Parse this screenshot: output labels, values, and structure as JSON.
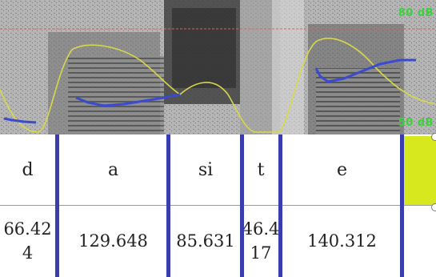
{
  "spectrogram": {
    "db_top": "80 dB",
    "db_bottom": "50 dB",
    "colors": {
      "intensity_curve": "#d8d84a",
      "pitch_curve": "#3a4bcf",
      "db_label": "#39d239",
      "boundary": "#3a3dad",
      "selection": "#d7e81e"
    }
  },
  "segments": [
    {
      "label": "d",
      "duration": "66.42\n4"
    },
    {
      "label": "a",
      "duration": "129.648"
    },
    {
      "label": "si",
      "duration": "85.631"
    },
    {
      "label": "t",
      "duration": "46.4\n17"
    },
    {
      "label": "e",
      "duration": "140.312"
    },
    {
      "label": "",
      "duration": ""
    }
  ]
}
